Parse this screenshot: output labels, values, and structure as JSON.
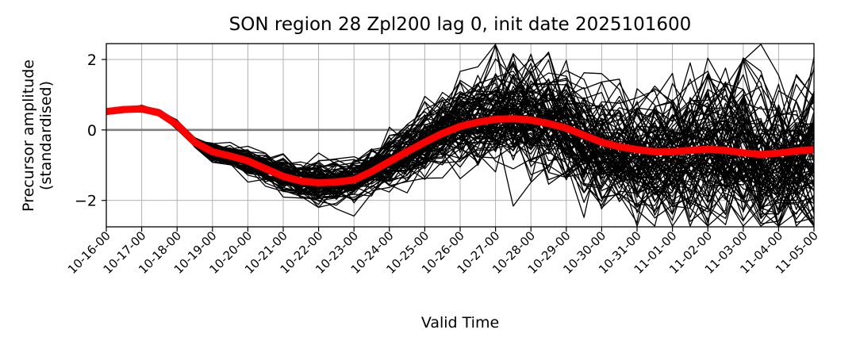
{
  "chart_data": {
    "type": "line",
    "title": "SON region 28 Zpl200 lag 0, init date 2025101600",
    "xlabel": "Valid Time",
    "ylabel_line1": "Precursor amplitude",
    "ylabel_line2": "(standardised)",
    "x_ticks": [
      "10-16-00",
      "10-17-00",
      "10-18-00",
      "10-19-00",
      "10-20-00",
      "10-21-00",
      "10-22-00",
      "10-23-00",
      "10-24-00",
      "10-25-00",
      "10-26-00",
      "10-27-00",
      "10-28-00",
      "10-29-00",
      "10-30-00",
      "10-31-00",
      "11-01-00",
      "11-02-00",
      "11-03-00",
      "11-04-00",
      "11-05-00"
    ],
    "xlim": [
      0,
      20
    ],
    "ylim": [
      -2.75,
      2.45
    ],
    "y_ticks": [
      -2,
      0,
      2
    ],
    "y_tick_labels": [
      "−2",
      "0",
      "2"
    ],
    "grid": true,
    "zero_line": {
      "y": 0,
      "color": "#808080"
    },
    "ensemble": {
      "color": "#000000",
      "members": 100,
      "time_step_days": 0.5,
      "spread_by_day": [
        0.02,
        0.04,
        0.06,
        0.12,
        0.18,
        0.24,
        0.3,
        0.3,
        0.38,
        0.48,
        0.62,
        0.72,
        0.78,
        0.82,
        0.88,
        0.94,
        0.98,
        1.02,
        1.05,
        1.08,
        1.1
      ]
    },
    "ensemble_mean": {
      "color": "#ff0000",
      "x": [
        0,
        0.5,
        1,
        1.5,
        2,
        2.5,
        3,
        3.5,
        4,
        4.5,
        5,
        5.5,
        6,
        6.5,
        7,
        7.5,
        8,
        8.5,
        9,
        9.5,
        10,
        10.5,
        11,
        11.5,
        12,
        12.5,
        13,
        13.5,
        14,
        14.5,
        15,
        15.5,
        16,
        16.5,
        17,
        17.5,
        18,
        18.5,
        19,
        19.5,
        20
      ],
      "y": [
        0.52,
        0.58,
        0.6,
        0.48,
        0.15,
        -0.35,
        -0.62,
        -0.74,
        -0.88,
        -1.1,
        -1.32,
        -1.45,
        -1.5,
        -1.48,
        -1.42,
        -1.18,
        -0.9,
        -0.62,
        -0.35,
        -0.1,
        0.1,
        0.22,
        0.3,
        0.32,
        0.28,
        0.18,
        0.05,
        -0.15,
        -0.35,
        -0.48,
        -0.56,
        -0.62,
        -0.62,
        -0.58,
        -0.55,
        -0.58,
        -0.65,
        -0.7,
        -0.66,
        -0.6,
        -0.56
      ]
    }
  }
}
